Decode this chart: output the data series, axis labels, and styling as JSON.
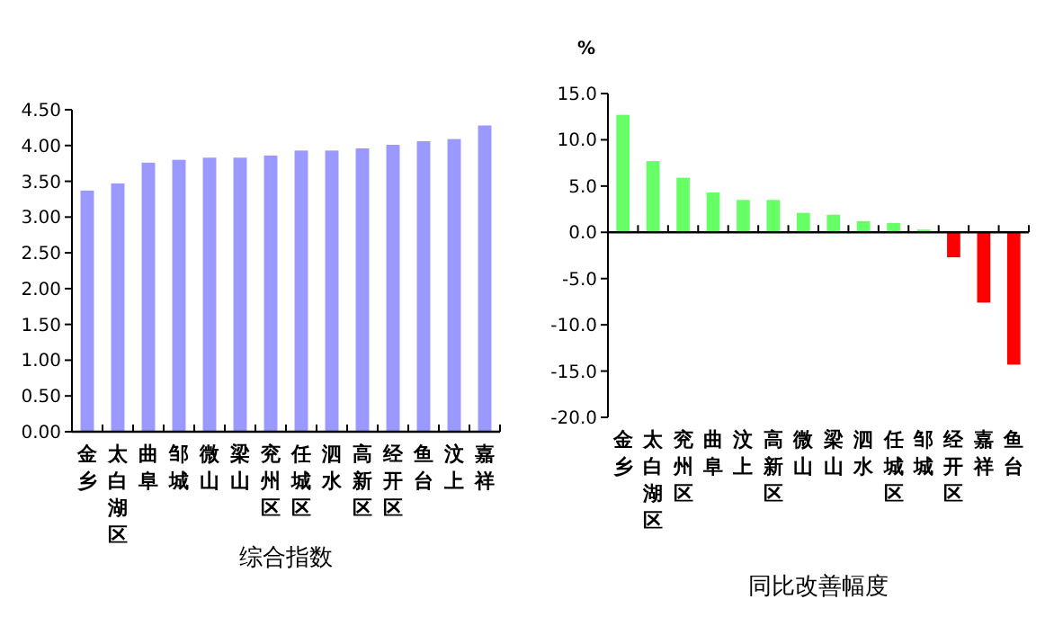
{
  "chart_data": [
    {
      "type": "bar",
      "xlabel": "综合指数",
      "categories": [
        "金乡",
        "太白湖区",
        "曲阜",
        "邹城",
        "微山",
        "梁山",
        "兖州区",
        "任城区",
        "泗水",
        "高新区",
        "经开区",
        "鱼台",
        "汶上",
        "嘉祥"
      ],
      "values": [
        3.37,
        3.47,
        3.76,
        3.8,
        3.83,
        3.83,
        3.86,
        3.93,
        3.93,
        3.96,
        4.01,
        4.06,
        4.09,
        4.28
      ],
      "color": "#9999ff",
      "ylim": [
        0,
        4.5
      ],
      "yticks": [
        {
          "value": 0,
          "label": "0.00"
        },
        {
          "value": 0.5,
          "label": "0.50"
        },
        {
          "value": 1,
          "label": "1.00"
        },
        {
          "value": 1.5,
          "label": "1.50"
        },
        {
          "value": 2,
          "label": "2.00"
        },
        {
          "value": 2.5,
          "label": "2.50"
        },
        {
          "value": 3,
          "label": "3.00"
        },
        {
          "value": 3.5,
          "label": "3.50"
        },
        {
          "value": 4,
          "label": "4.00"
        },
        {
          "value": 4.5,
          "label": "4.50"
        }
      ]
    },
    {
      "type": "bar",
      "xlabel": "同比改善幅度",
      "ylabel": "%",
      "categories": [
        "金乡",
        "太白湖区",
        "兖州区",
        "曲阜",
        "汶上",
        "高新区",
        "微山",
        "梁山",
        "泗水",
        "任城区",
        "邹城",
        "经开区",
        "嘉祥",
        "鱼台"
      ],
      "values": [
        12.7,
        7.7,
        5.9,
        4.3,
        3.5,
        3.5,
        2.1,
        1.9,
        1.2,
        1.0,
        0.3,
        -2.7,
        -7.6,
        -14.3
      ],
      "colors": [
        "#66ff66",
        "#66ff66",
        "#66ff66",
        "#66ff66",
        "#66ff66",
        "#66ff66",
        "#66ff66",
        "#66ff66",
        "#66ff66",
        "#66ff66",
        "#66ff66",
        "#ff0000",
        "#ff0000",
        "#ff0000"
      ],
      "ylim": [
        -20,
        15
      ],
      "yticks": [
        {
          "value": -20,
          "label": "-20.0"
        },
        {
          "value": -15,
          "label": "-15.0"
        },
        {
          "value": -10,
          "label": "-10.0"
        },
        {
          "value": -5,
          "label": "-5.0"
        },
        {
          "value": 0,
          "label": "0.0"
        },
        {
          "value": 5,
          "label": "5.0"
        },
        {
          "value": 10,
          "label": "10.0"
        },
        {
          "value": 15,
          "label": "15.0"
        }
      ]
    }
  ]
}
